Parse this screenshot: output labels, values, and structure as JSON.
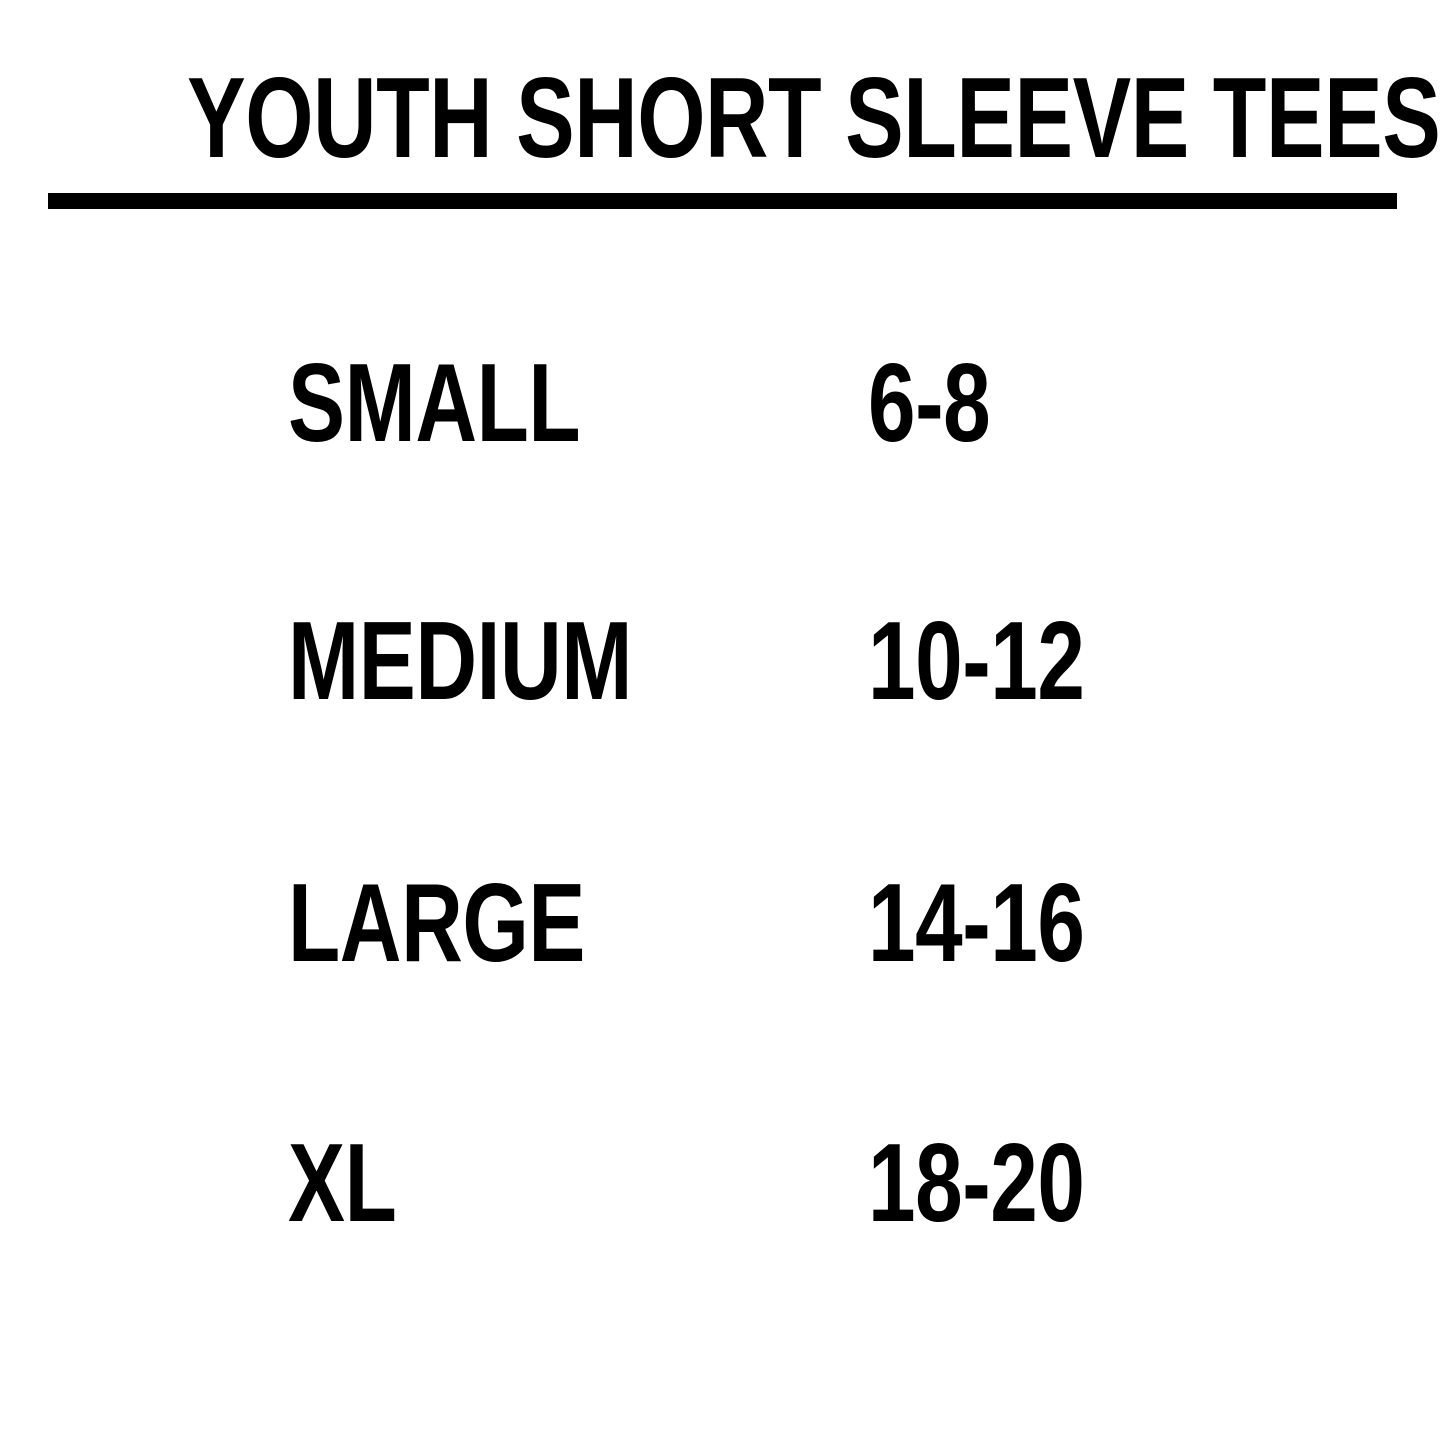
{
  "colors": {
    "background": "#ffffff",
    "text": "#000000",
    "divider": "#000000"
  },
  "title": "YOUTH SHORT SLEEVE TEES",
  "size_chart": {
    "rows": [
      {
        "size": "SMALL",
        "range": "6-8"
      },
      {
        "size": "MEDIUM",
        "range": "10-12"
      },
      {
        "size": "LARGE",
        "range": "14-16"
      },
      {
        "size": "XL",
        "range": "18-20"
      }
    ]
  }
}
